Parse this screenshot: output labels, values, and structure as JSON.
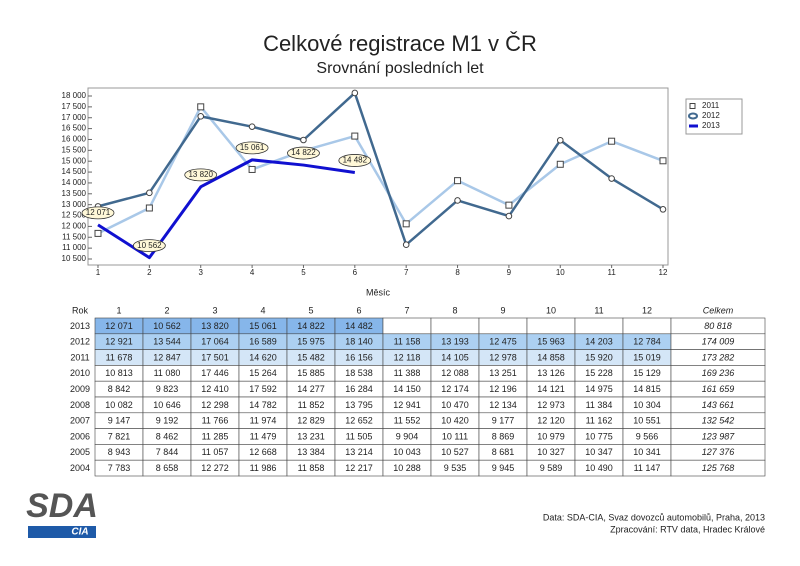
{
  "chart_data": {
    "type": "line",
    "title": "Celkové registrace M1 v ČR",
    "subtitle": "Srovnání posledních let",
    "x_label": "Měsíc",
    "x": [
      1,
      2,
      3,
      4,
      5,
      6,
      7,
      8,
      9,
      10,
      11,
      12
    ],
    "xlim": [
      1,
      12
    ],
    "xticks": [
      1,
      2,
      3,
      4,
      5,
      6,
      7,
      8,
      9,
      10,
      11,
      12
    ],
    "ylim": [
      10500,
      18000
    ],
    "yticks": [
      {
        "value": 10500,
        "label": "10 500"
      },
      {
        "value": 11000,
        "label": "11 000"
      },
      {
        "value": 11500,
        "label": "11 500"
      },
      {
        "value": 12000,
        "label": "12 000"
      },
      {
        "value": 12500,
        "label": "12 500"
      },
      {
        "value": 13000,
        "label": "13 000"
      },
      {
        "value": 13500,
        "label": "13 500"
      },
      {
        "value": 14000,
        "label": "14 000"
      },
      {
        "value": 14500,
        "label": "14 500"
      },
      {
        "value": 15000,
        "label": "15 000"
      },
      {
        "value": 15500,
        "label": "15 500"
      },
      {
        "value": 16000,
        "label": "16 000"
      },
      {
        "value": 16500,
        "label": "16 500"
      },
      {
        "value": 17000,
        "label": "17 000"
      },
      {
        "value": 17500,
        "label": "17 500"
      },
      {
        "value": 18000,
        "label": "18 000"
      }
    ],
    "legend": "top-right",
    "series": [
      {
        "name": "2011",
        "color": "#a9c8e8",
        "marker": "square",
        "values": [
          11678,
          12847,
          17501,
          14620,
          15482,
          16156,
          12118,
          14105,
          12978,
          14858,
          15920,
          15019
        ]
      },
      {
        "name": "2012",
        "color": "#41698f",
        "marker": "circle",
        "values": [
          12921,
          13544,
          17064,
          16589,
          15975,
          18140,
          11158,
          13193,
          12475,
          15963,
          14203,
          12784
        ]
      },
      {
        "name": "2013",
        "color": "#1010d0",
        "marker": "none",
        "values": [
          12071,
          10562,
          13820,
          15061,
          14822,
          14482,
          null,
          null,
          null,
          null,
          null,
          null
        ],
        "value_labels": [
          "12 071",
          "10 562",
          "13 820",
          "15 061",
          "14 822",
          "14 482",
          null,
          null,
          null,
          null,
          null,
          null
        ]
      }
    ]
  },
  "table": {
    "columns": [
      "Rok",
      "1",
      "2",
      "3",
      "4",
      "5",
      "6",
      "7",
      "8",
      "9",
      "10",
      "11",
      "12",
      "Celkem"
    ],
    "rows": [
      [
        "2013",
        "12 071",
        "10 562",
        "13 820",
        "15 061",
        "14 822",
        "14 482",
        null,
        null,
        null,
        null,
        null,
        null,
        "80 818"
      ],
      [
        "2012",
        "12 921",
        "13 544",
        "17 064",
        "16 589",
        "15 975",
        "18 140",
        "11 158",
        "13 193",
        "12 475",
        "15 963",
        "14 203",
        "12 784",
        "174 009"
      ],
      [
        "2011",
        "11 678",
        "12 847",
        "17 501",
        "14 620",
        "15 482",
        "16 156",
        "12 118",
        "14 105",
        "12 978",
        "14 858",
        "15 920",
        "15 019",
        "173 282"
      ],
      [
        "2010",
        "10 813",
        "11 080",
        "17 446",
        "15 264",
        "15 885",
        "18 538",
        "11 388",
        "12 088",
        "13 251",
        "13 126",
        "15 228",
        "15 129",
        "169 236"
      ],
      [
        "2009",
        "8 842",
        "9 823",
        "12 410",
        "17 592",
        "14 277",
        "16 284",
        "14 150",
        "12 174",
        "12 196",
        "14 121",
        "14 975",
        "14 815",
        "161 659"
      ],
      [
        "2008",
        "10 082",
        "10 646",
        "12 298",
        "14 782",
        "11 852",
        "13 795",
        "12 941",
        "10 470",
        "12 134",
        "12 973",
        "11 384",
        "10 304",
        "143 661"
      ],
      [
        "2007",
        "9 147",
        "9 192",
        "11 766",
        "11 974",
        "12 829",
        "12 652",
        "11 552",
        "10 420",
        "9 177",
        "12 120",
        "11 162",
        "10 551",
        "132 542"
      ],
      [
        "2006",
        "7 821",
        "8 462",
        "11 285",
        "11 479",
        "13 231",
        "11 505",
        "9 904",
        "10 111",
        "8 869",
        "10 979",
        "10 775",
        "9 566",
        "123 987"
      ],
      [
        "2005",
        "8 943",
        "7 844",
        "11 057",
        "12 668",
        "13 384",
        "13 214",
        "10 043",
        "10 527",
        "8 681",
        "10 327",
        "10 347",
        "10 341",
        "127 376"
      ],
      [
        "2004",
        "7 783",
        "8 658",
        "12 272",
        "11 986",
        "11 858",
        "12 217",
        "10 288",
        "9 535",
        "9 945",
        "9 589",
        "10 490",
        "11 147",
        "125 768"
      ]
    ]
  },
  "logo": {
    "title": "SDA",
    "subtitle": "CIA"
  },
  "footer": {
    "source": "Data: SDA-CIA, Svaz dovozců automobilů, Praha, 2013",
    "processed": "Zpracování: RTV data, Hradec Králové"
  }
}
